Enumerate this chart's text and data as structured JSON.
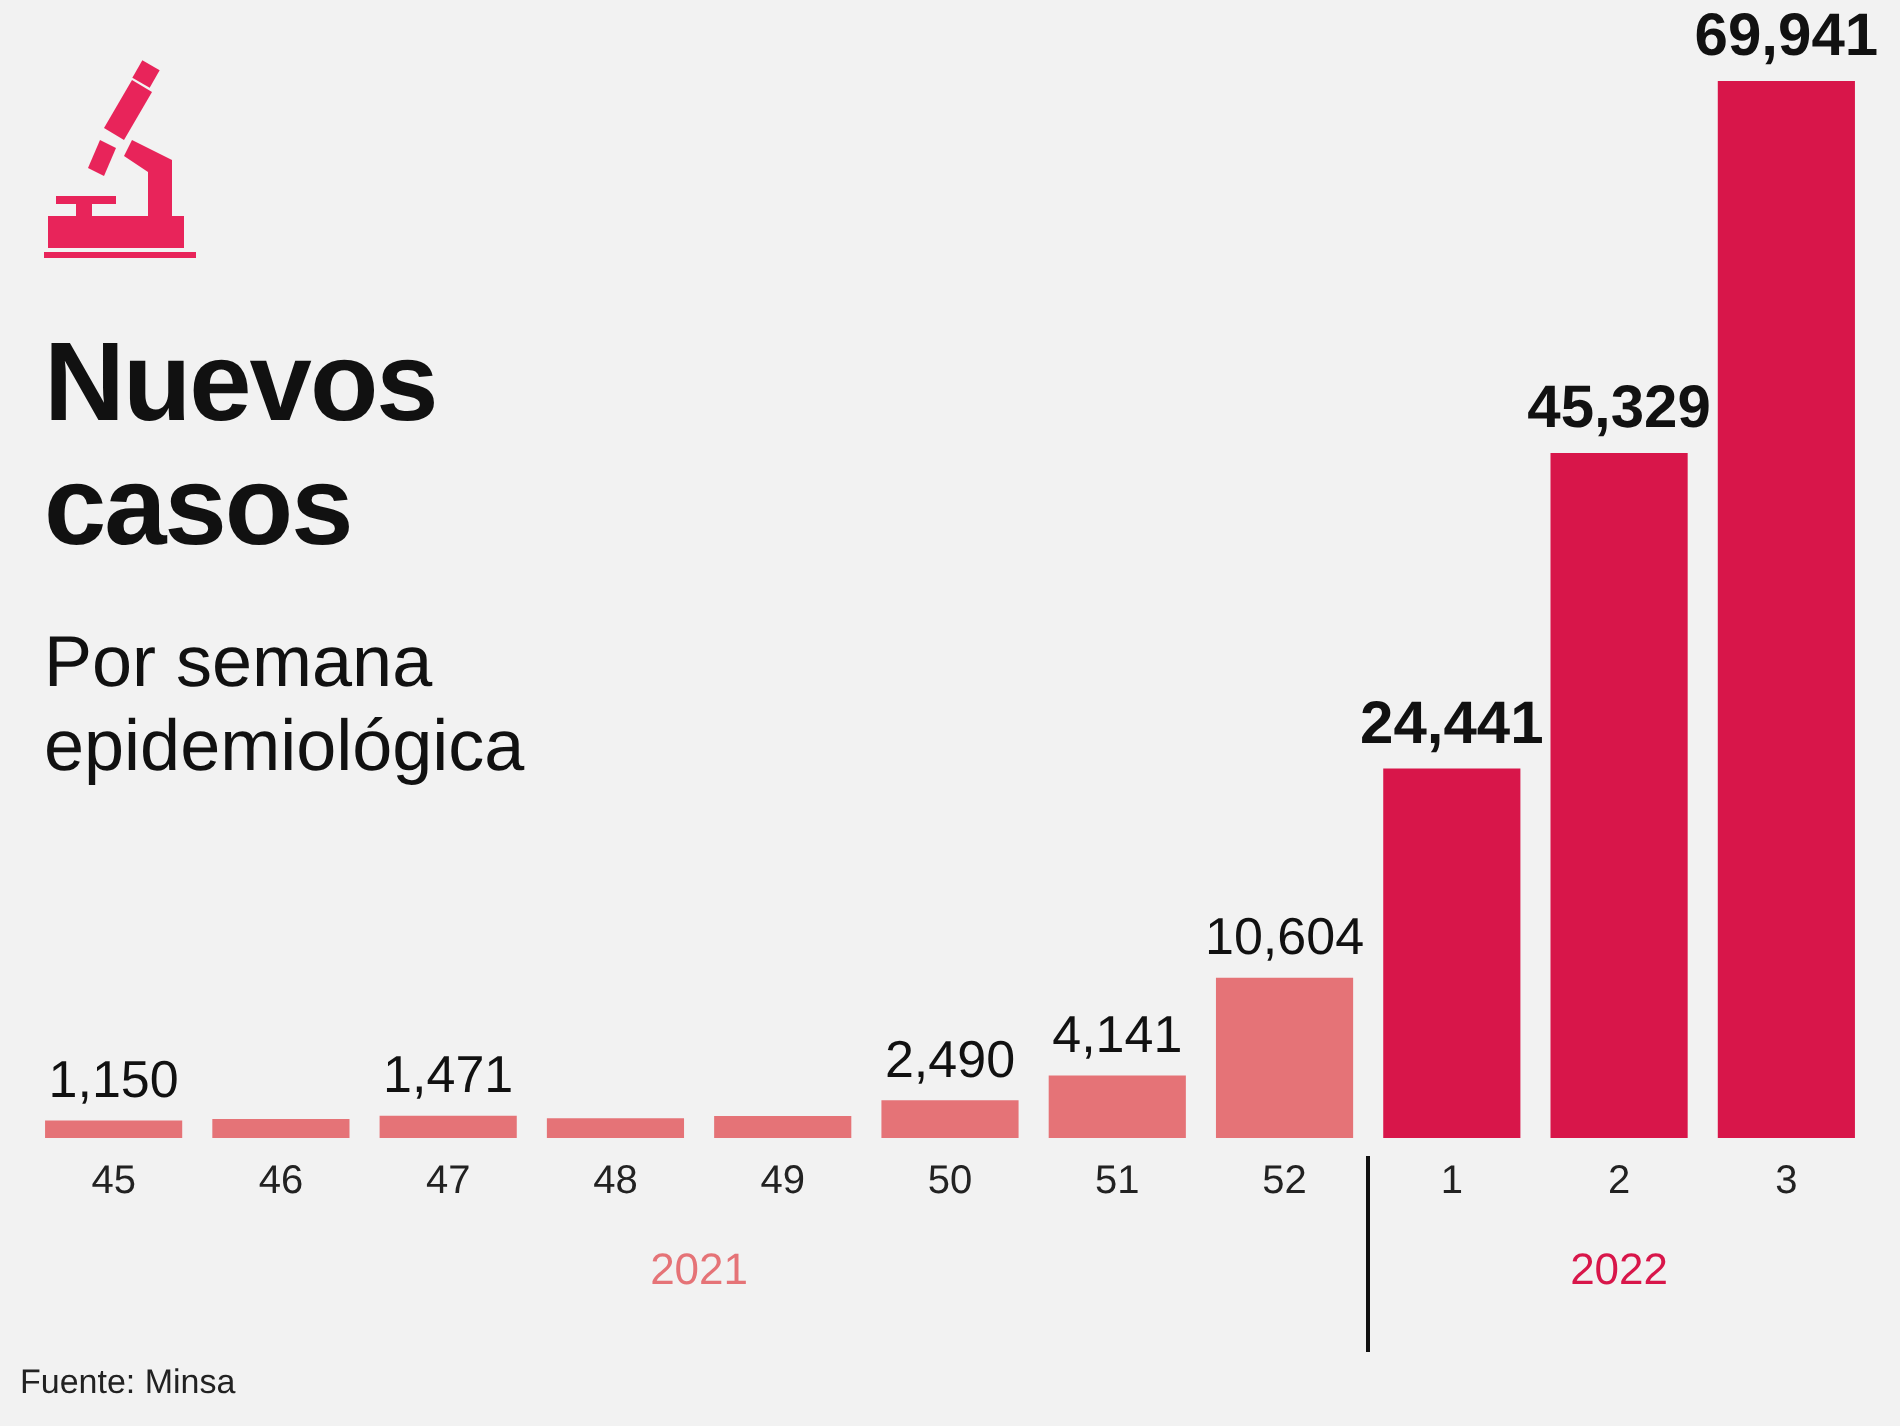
{
  "chart_data": {
    "type": "bar",
    "title": "Nuevos casos",
    "subtitle": "Por semana epidemiológica",
    "categories": [
      "45",
      "46",
      "47",
      "48",
      "49",
      "50",
      "51",
      "52",
      "1",
      "2",
      "3"
    ],
    "values": [
      1150,
      1250,
      1471,
      1300,
      1450,
      2490,
      4141,
      10604,
      24441,
      45329,
      69941
    ],
    "value_labels": [
      "1,150",
      null,
      "1,471",
      null,
      null,
      "2,490",
      "4,141",
      "10,604",
      "24,441",
      "45,329",
      "69,941"
    ],
    "colors": [
      "#e57377",
      "#e57377",
      "#e57377",
      "#e57377",
      "#e57377",
      "#e57377",
      "#e57377",
      "#e57377",
      "#d8164a",
      "#d8164a",
      "#d8164a"
    ],
    "annotations": [
      "2021",
      "2022",
      "Fuente: Minsa"
    ],
    "grid": false,
    "legend": false
  }
}
